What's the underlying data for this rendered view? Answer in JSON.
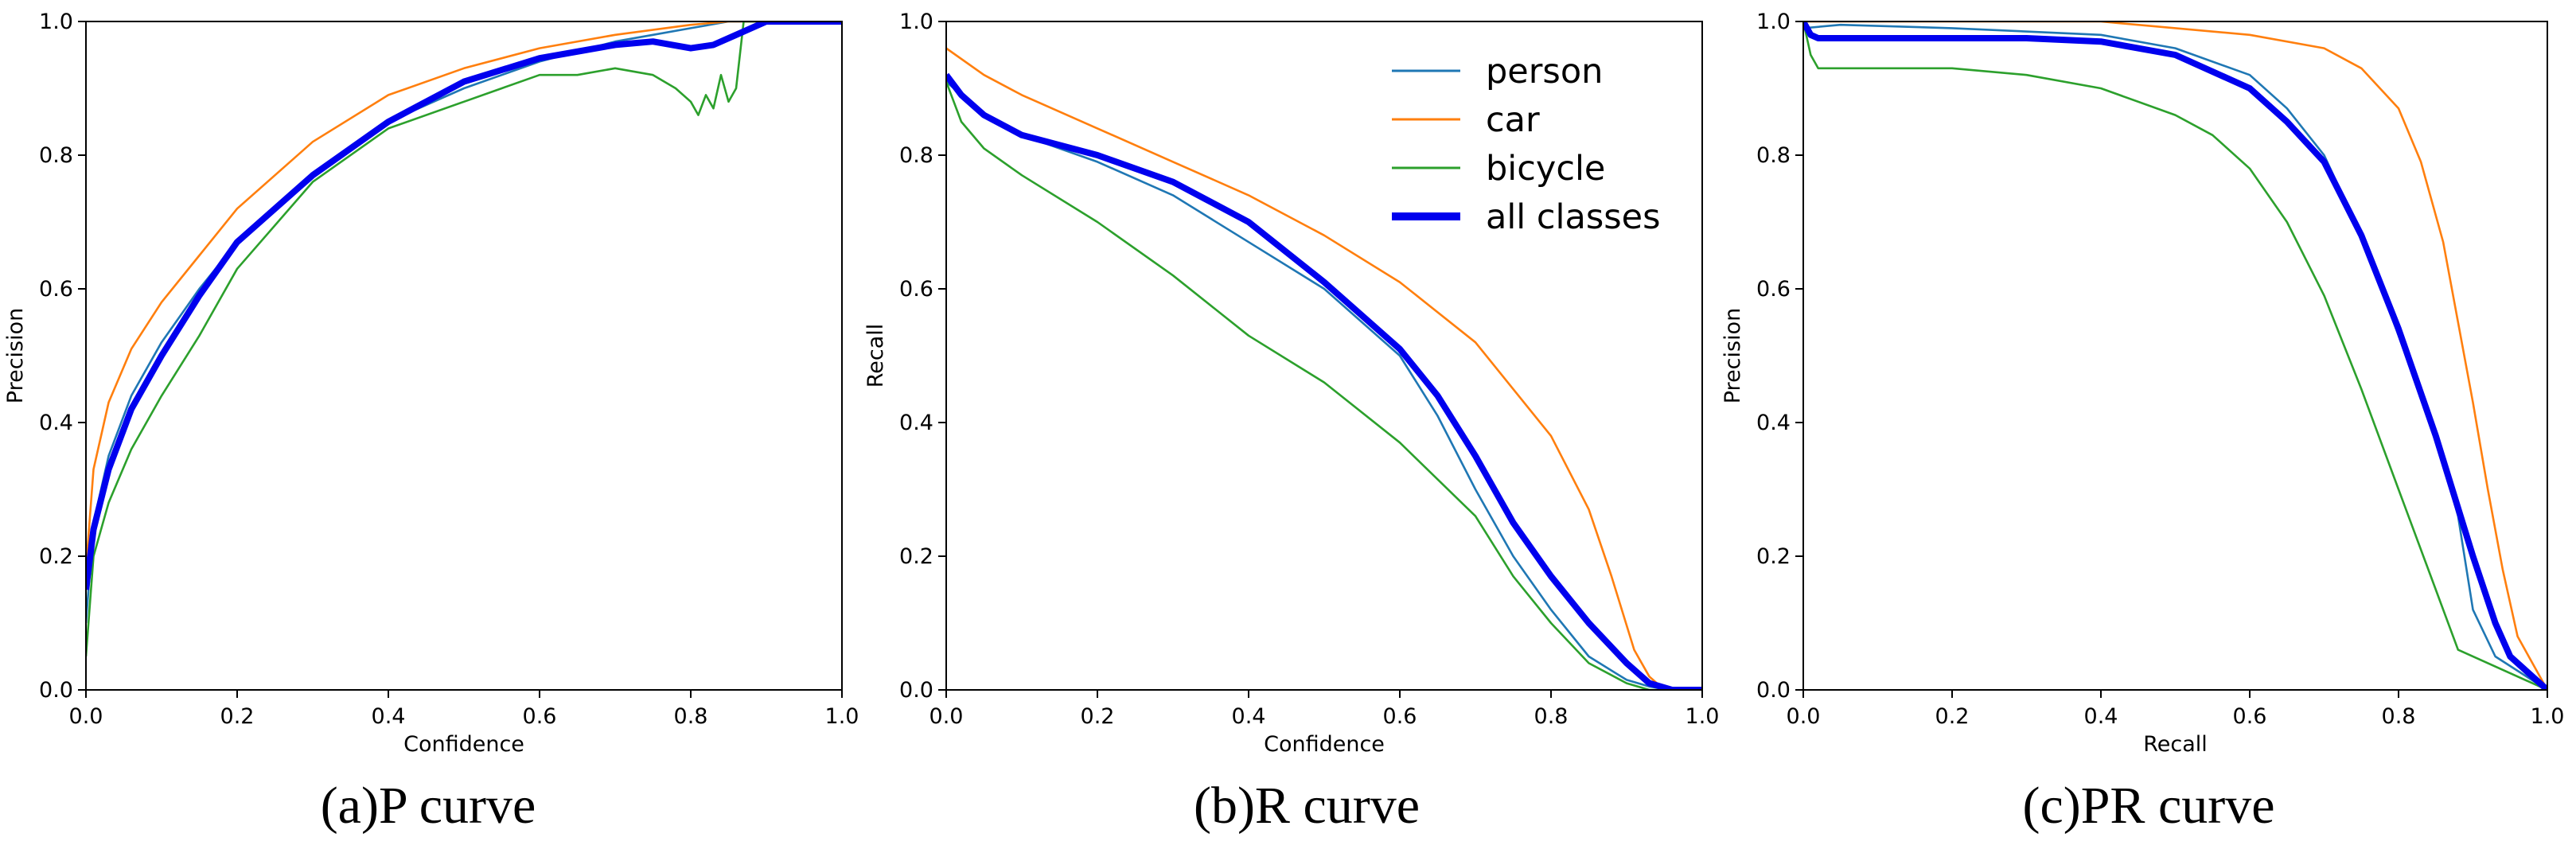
{
  "colors": {
    "person": "#1f77b4",
    "car": "#ff7f0e",
    "bicycle": "#2ca02c",
    "all": "#0000ee"
  },
  "captions": [
    "(a)P curve",
    "(b)R curve",
    "(c)PR curve"
  ],
  "chart_data": [
    {
      "type": "line",
      "title": "",
      "xlabel": "Confidence",
      "ylabel": "Precision",
      "xlim": [
        0,
        1
      ],
      "ylim": [
        0,
        1
      ],
      "xticks": [
        "0.0",
        "0.2",
        "0.4",
        "0.6",
        "0.8",
        "1.0"
      ],
      "yticks": [
        "0.0",
        "0.2",
        "0.4",
        "0.6",
        "0.8",
        "1.0"
      ],
      "series": [
        {
          "name": "person",
          "x": [
            0,
            0.01,
            0.03,
            0.06,
            0.1,
            0.15,
            0.2,
            0.3,
            0.4,
            0.5,
            0.6,
            0.7,
            0.75,
            0.8,
            0.85,
            0.88,
            0.9,
            1.0
          ],
          "y": [
            0.1,
            0.25,
            0.35,
            0.44,
            0.52,
            0.6,
            0.67,
            0.77,
            0.85,
            0.9,
            0.94,
            0.97,
            0.98,
            0.99,
            1.0,
            1.0,
            1.0,
            1.0
          ]
        },
        {
          "name": "car",
          "x": [
            0,
            0.01,
            0.03,
            0.06,
            0.1,
            0.15,
            0.2,
            0.3,
            0.4,
            0.5,
            0.6,
            0.7,
            0.8,
            0.85,
            0.9,
            1.0
          ],
          "y": [
            0.18,
            0.33,
            0.43,
            0.51,
            0.58,
            0.65,
            0.72,
            0.82,
            0.89,
            0.93,
            0.96,
            0.98,
            0.995,
            1.0,
            1.0,
            1.0
          ]
        },
        {
          "name": "bicycle",
          "x": [
            0,
            0.01,
            0.03,
            0.06,
            0.1,
            0.15,
            0.2,
            0.3,
            0.4,
            0.5,
            0.55,
            0.6,
            0.65,
            0.7,
            0.75,
            0.78,
            0.8,
            0.81,
            0.82,
            0.83,
            0.84,
            0.85,
            0.86,
            0.87,
            0.875,
            0.9,
            1.0
          ],
          "y": [
            0.05,
            0.2,
            0.28,
            0.36,
            0.44,
            0.53,
            0.63,
            0.76,
            0.84,
            0.88,
            0.9,
            0.92,
            0.92,
            0.93,
            0.92,
            0.9,
            0.88,
            0.86,
            0.89,
            0.87,
            0.92,
            0.88,
            0.9,
            1.0,
            1.0,
            1.0,
            1.0
          ]
        },
        {
          "name": "all classes",
          "x": [
            0,
            0.01,
            0.03,
            0.06,
            0.1,
            0.15,
            0.2,
            0.3,
            0.4,
            0.5,
            0.6,
            0.7,
            0.75,
            0.8,
            0.83,
            0.86,
            0.9,
            1.0
          ],
          "y": [
            0.15,
            0.24,
            0.33,
            0.42,
            0.5,
            0.59,
            0.67,
            0.77,
            0.85,
            0.91,
            0.945,
            0.965,
            0.97,
            0.96,
            0.965,
            0.98,
            1.0,
            1.0
          ]
        }
      ]
    },
    {
      "type": "line",
      "title": "",
      "xlabel": "Confidence",
      "ylabel": "Recall",
      "xlim": [
        0,
        1
      ],
      "ylim": [
        0,
        1
      ],
      "xticks": [
        "0.0",
        "0.2",
        "0.4",
        "0.6",
        "0.8",
        "1.0"
      ],
      "yticks": [
        "0.0",
        "0.2",
        "0.4",
        "0.6",
        "0.8",
        "1.0"
      ],
      "legend": {
        "placement": "top-right",
        "entries": [
          "person",
          "car",
          "bicycle",
          "all classes"
        ]
      },
      "series": [
        {
          "name": "person",
          "x": [
            0,
            0.05,
            0.1,
            0.2,
            0.3,
            0.4,
            0.5,
            0.6,
            0.65,
            0.7,
            0.75,
            0.8,
            0.85,
            0.9,
            0.93,
            0.96,
            1.0
          ],
          "y": [
            0.91,
            0.86,
            0.83,
            0.79,
            0.74,
            0.67,
            0.6,
            0.5,
            0.41,
            0.3,
            0.2,
            0.12,
            0.05,
            0.015,
            0.005,
            0.0,
            0.0
          ]
        },
        {
          "name": "car",
          "x": [
            0,
            0.05,
            0.1,
            0.2,
            0.3,
            0.4,
            0.5,
            0.6,
            0.7,
            0.8,
            0.85,
            0.88,
            0.91,
            0.93,
            0.95,
            1.0
          ],
          "y": [
            0.96,
            0.92,
            0.89,
            0.84,
            0.79,
            0.74,
            0.68,
            0.61,
            0.52,
            0.38,
            0.27,
            0.17,
            0.06,
            0.02,
            0.0,
            0.0
          ]
        },
        {
          "name": "bicycle",
          "x": [
            0,
            0.02,
            0.05,
            0.1,
            0.2,
            0.3,
            0.4,
            0.5,
            0.6,
            0.7,
            0.75,
            0.8,
            0.85,
            0.9,
            0.93,
            1.0
          ],
          "y": [
            0.91,
            0.85,
            0.81,
            0.77,
            0.7,
            0.62,
            0.53,
            0.46,
            0.37,
            0.26,
            0.17,
            0.1,
            0.04,
            0.01,
            0.0,
            0.0
          ]
        },
        {
          "name": "all classes",
          "x": [
            0,
            0.02,
            0.05,
            0.1,
            0.2,
            0.3,
            0.4,
            0.5,
            0.6,
            0.65,
            0.7,
            0.75,
            0.8,
            0.85,
            0.9,
            0.93,
            0.96,
            1.0
          ],
          "y": [
            0.92,
            0.89,
            0.86,
            0.83,
            0.8,
            0.76,
            0.7,
            0.61,
            0.51,
            0.44,
            0.35,
            0.25,
            0.17,
            0.1,
            0.04,
            0.01,
            0.0,
            0.0
          ]
        }
      ]
    },
    {
      "type": "line",
      "title": "",
      "xlabel": "Recall",
      "ylabel": "Precision",
      "xlim": [
        0,
        1
      ],
      "ylim": [
        0,
        1
      ],
      "xticks": [
        "0.0",
        "0.2",
        "0.4",
        "0.6",
        "0.8",
        "1.0"
      ],
      "yticks": [
        "0.0",
        "0.2",
        "0.4",
        "0.6",
        "0.8",
        "1.0"
      ],
      "series": [
        {
          "name": "person",
          "x": [
            0,
            0.05,
            0.2,
            0.4,
            0.5,
            0.6,
            0.65,
            0.7,
            0.75,
            0.8,
            0.85,
            0.88,
            0.9,
            0.93,
            1.0
          ],
          "y": [
            0.99,
            0.995,
            0.99,
            0.98,
            0.96,
            0.92,
            0.87,
            0.8,
            0.68,
            0.53,
            0.38,
            0.26,
            0.12,
            0.05,
            0.0
          ]
        },
        {
          "name": "car",
          "x": [
            0,
            0.2,
            0.4,
            0.6,
            0.7,
            0.75,
            0.8,
            0.83,
            0.86,
            0.88,
            0.9,
            0.92,
            0.94,
            0.96,
            1.0
          ],
          "y": [
            1.0,
            1.0,
            1.0,
            0.98,
            0.96,
            0.93,
            0.87,
            0.79,
            0.67,
            0.55,
            0.43,
            0.3,
            0.18,
            0.08,
            0.0
          ]
        },
        {
          "name": "bicycle",
          "x": [
            0,
            0.01,
            0.02,
            0.2,
            0.3,
            0.4,
            0.5,
            0.55,
            0.6,
            0.65,
            0.7,
            0.75,
            0.8,
            0.85,
            0.88,
            1.0
          ],
          "y": [
            1.0,
            0.95,
            0.93,
            0.93,
            0.92,
            0.9,
            0.86,
            0.83,
            0.78,
            0.7,
            0.59,
            0.45,
            0.3,
            0.15,
            0.06,
            0.0
          ]
        },
        {
          "name": "all classes",
          "x": [
            0,
            0.01,
            0.02,
            0.1,
            0.2,
            0.3,
            0.4,
            0.5,
            0.6,
            0.65,
            0.7,
            0.75,
            0.8,
            0.85,
            0.9,
            0.93,
            0.95,
            1.0
          ],
          "y": [
            1.0,
            0.98,
            0.975,
            0.975,
            0.975,
            0.975,
            0.97,
            0.95,
            0.9,
            0.85,
            0.79,
            0.68,
            0.54,
            0.38,
            0.2,
            0.1,
            0.05,
            0.0
          ]
        }
      ]
    }
  ]
}
